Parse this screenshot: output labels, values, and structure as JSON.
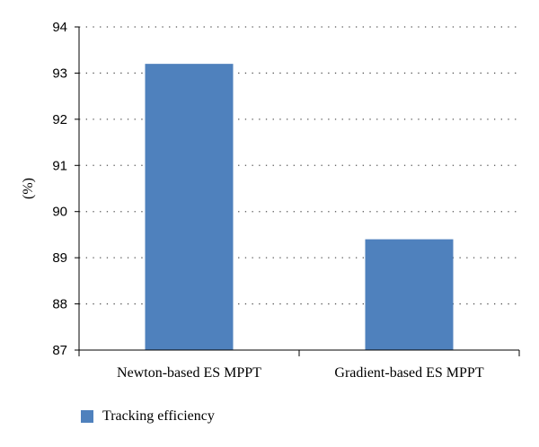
{
  "chart_data": {
    "type": "bar",
    "categories": [
      "Newton-based ES MPPT",
      "Gradient-based ES MPPT"
    ],
    "series": [
      {
        "name": "Tracking efficiency",
        "values": [
          93.2,
          89.4
        ]
      }
    ],
    "title": "",
    "xlabel": "",
    "ylabel": "(%)",
    "ylim": [
      87,
      94
    ],
    "yticks": [
      "87",
      "88",
      "89",
      "90",
      "91",
      "92",
      "93",
      "94"
    ],
    "grid": true,
    "legend_position": "bottom-left",
    "colors": {
      "bar": "#4f81bd",
      "grid": "#555555",
      "axis": "#000000"
    }
  }
}
